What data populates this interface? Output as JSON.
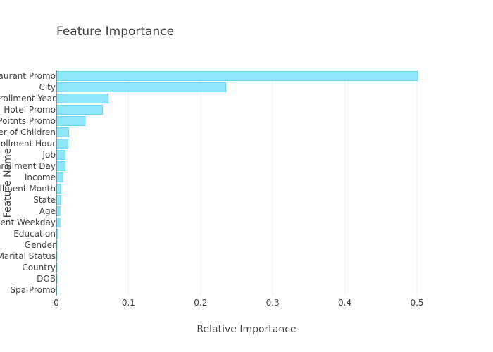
{
  "chart_data": {
    "type": "bar",
    "orientation": "horizontal",
    "title": "Feature Importance",
    "xlabel": "Relative Importance",
    "ylabel": "Feature Name",
    "xlim": [
      0,
      0.53
    ],
    "xticks": [
      0,
      0.1,
      0.2,
      0.3,
      0.4,
      0.5
    ],
    "xtick_labels": [
      "0",
      "0.1",
      "0.2",
      "0.3",
      "0.4",
      "0.5"
    ],
    "grid": true,
    "legend": false,
    "categories": [
      "Restaurant Promo",
      "City",
      "Enrollment Year",
      "Hotel Promo",
      "Poitnts Promo",
      "Number of Children",
      "Enrollment Hour",
      "Job",
      "Enrollment Day",
      "Income",
      "Enrollment Month",
      "State",
      "Age",
      "Enrollment Weekday",
      "Education",
      "Gender",
      "Marital Status",
      "Country",
      "DOB",
      "Spa Promo"
    ],
    "values": [
      0.501,
      0.235,
      0.072,
      0.064,
      0.04,
      0.017,
      0.016,
      0.012,
      0.012,
      0.009,
      0.006,
      0.006,
      0.005,
      0.005,
      0.002,
      0.001,
      0.001,
      0.001,
      0.001,
      0.0005
    ],
    "colors": {
      "bar_fill": "#8ee6fa",
      "bar_stroke": "#69d6f0",
      "text": "#444444",
      "grid": "#eeeeee"
    }
  }
}
